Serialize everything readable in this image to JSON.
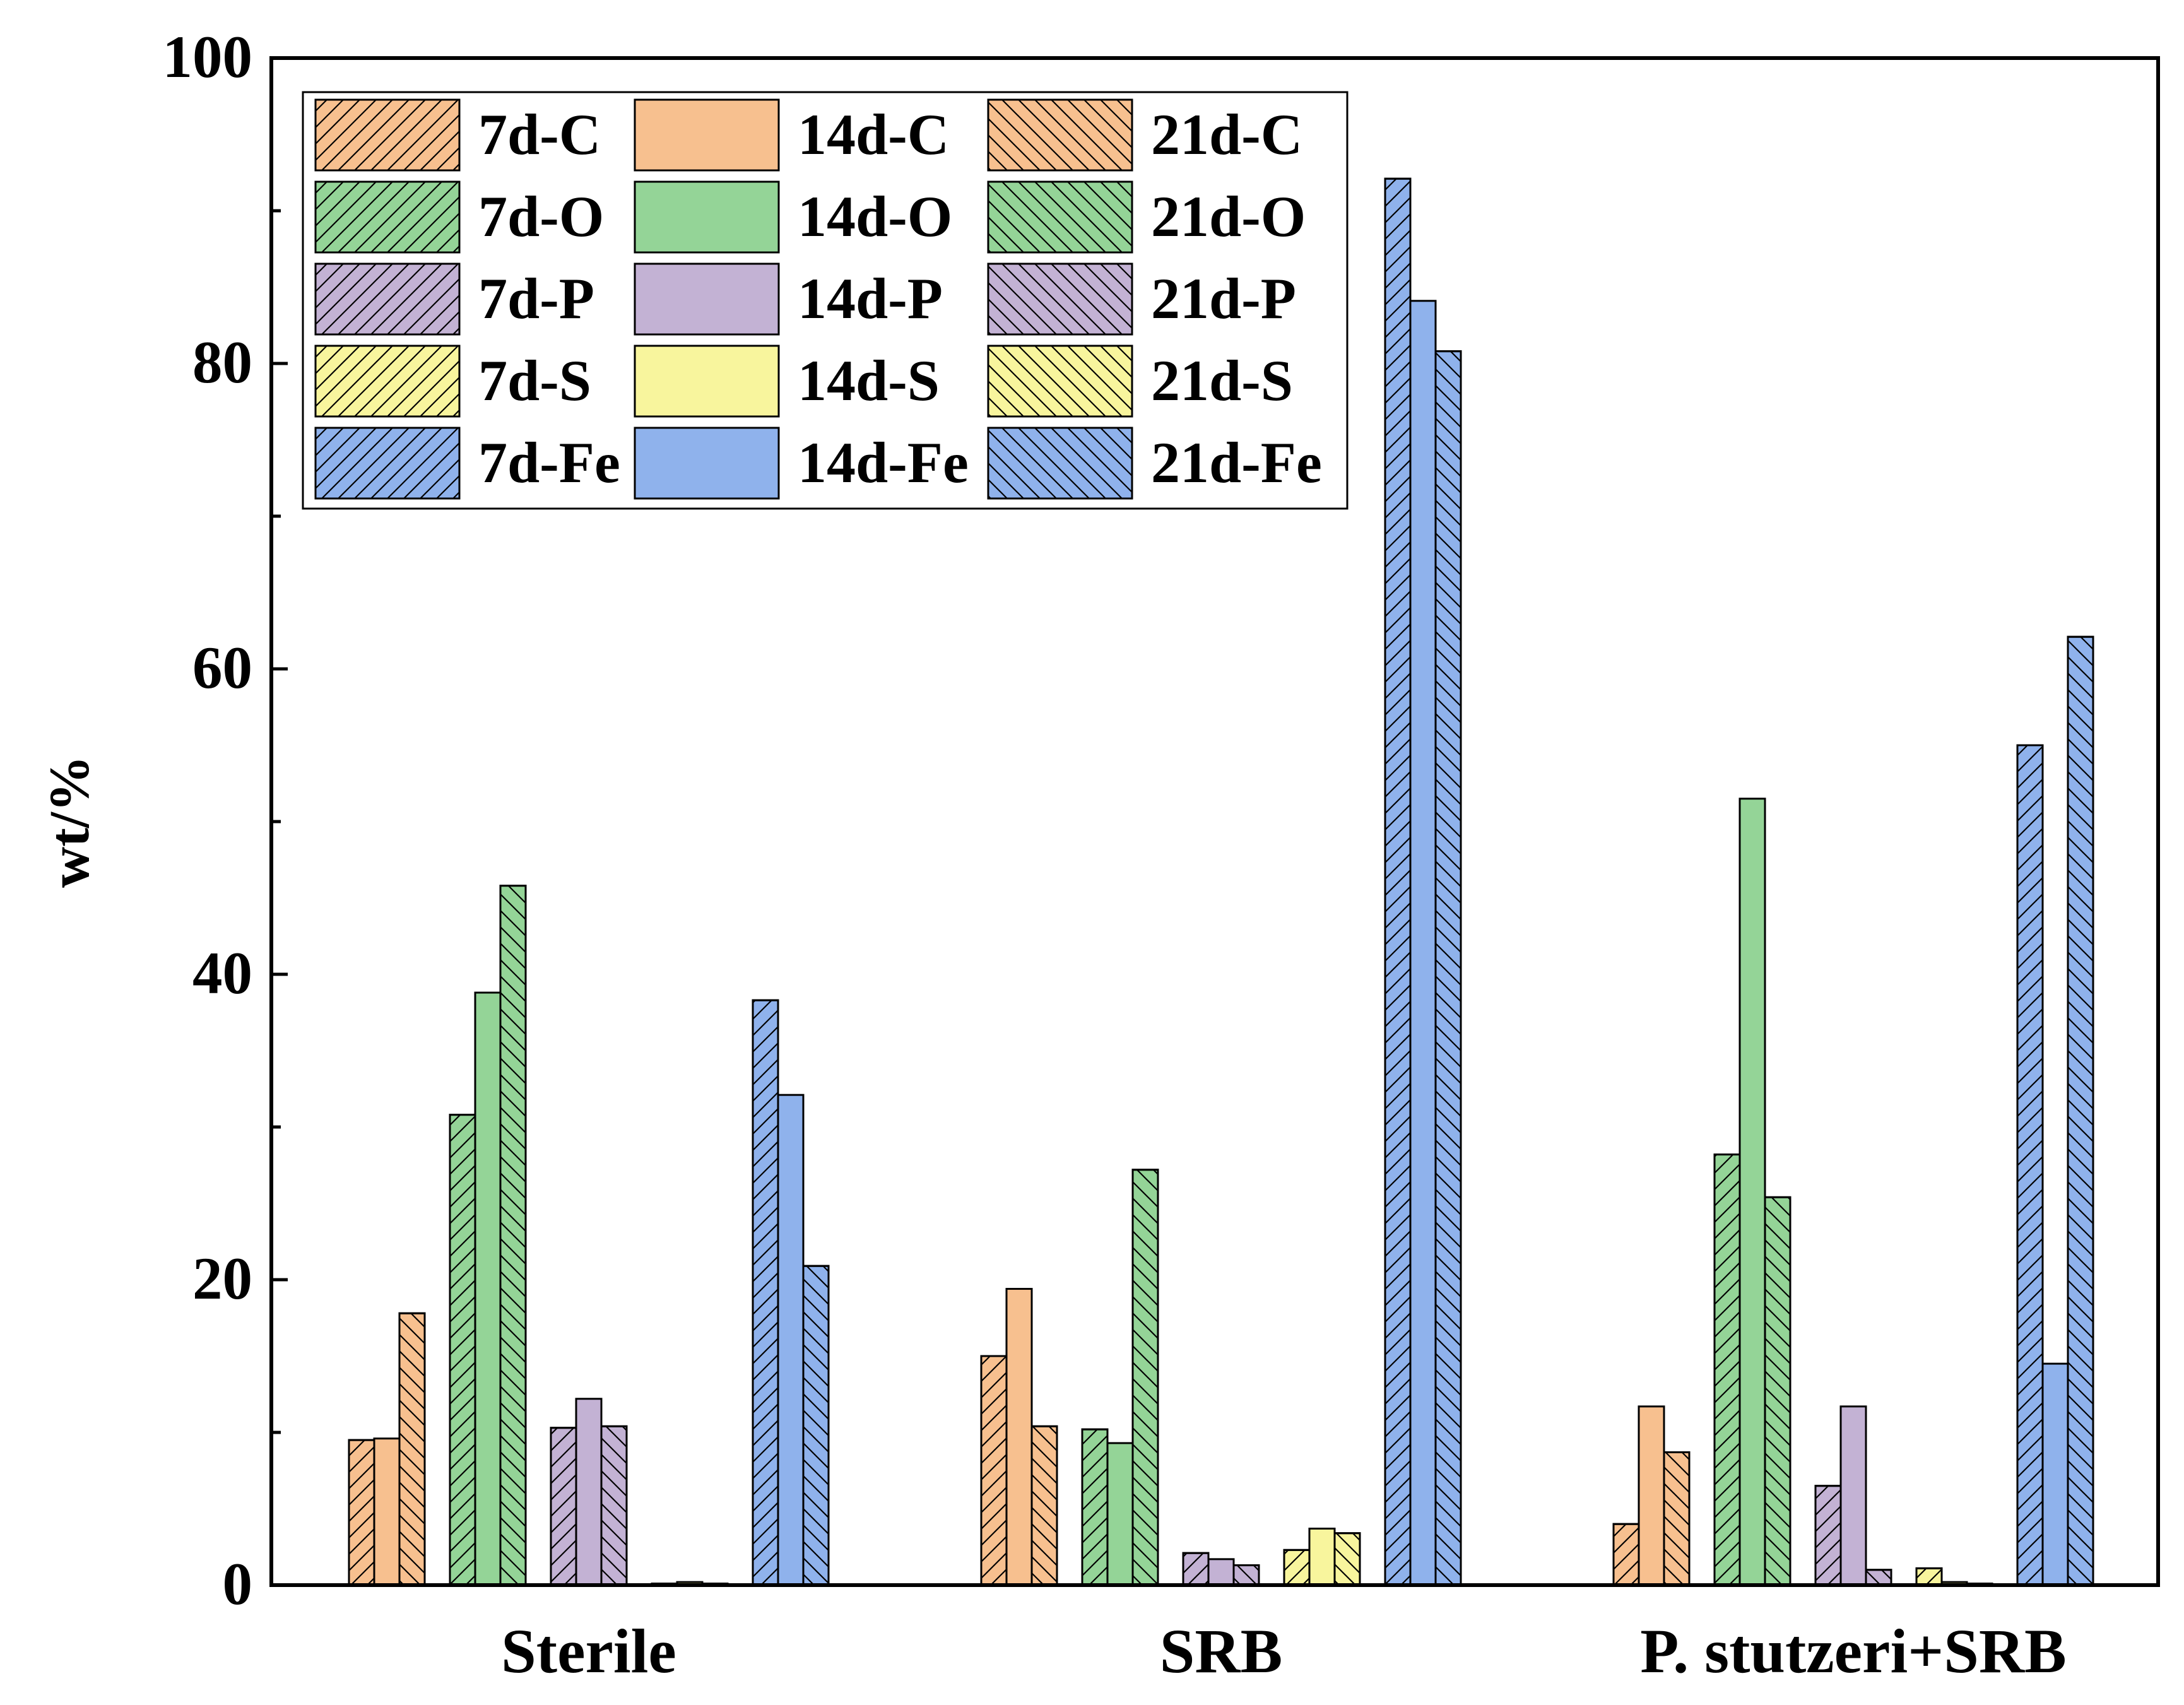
{
  "chart_data": {
    "type": "bar",
    "title": "",
    "xlabel": "",
    "ylabel": "wt/%",
    "ylim": [
      0,
      100
    ],
    "yticks": [
      0,
      20,
      40,
      60,
      80,
      100
    ],
    "grid": false,
    "legend_position": "top-left",
    "categories": [
      "Sterile",
      "SRB",
      "P. stutzeri+SRB"
    ],
    "element_colors": {
      "C": "#f7c08f",
      "O": "#94d497",
      "P": "#c3b2d4",
      "S": "#f8f59d",
      "Fe": "#8fb2ec"
    },
    "hatch_by_day": {
      "7d": "forward",
      "14d": "solid",
      "21d": "backward"
    },
    "series": [
      {
        "name": "7d-C",
        "element": "C",
        "day": "7d",
        "values": [
          9.5,
          15.0,
          4.0
        ]
      },
      {
        "name": "14d-C",
        "element": "C",
        "day": "14d",
        "values": [
          9.6,
          19.4,
          11.7
        ]
      },
      {
        "name": "21d-C",
        "element": "C",
        "day": "21d",
        "values": [
          17.8,
          10.4,
          8.7
        ]
      },
      {
        "name": "7d-O",
        "element": "O",
        "day": "7d",
        "values": [
          30.8,
          10.2,
          28.2
        ]
      },
      {
        "name": "14d-O",
        "element": "O",
        "day": "14d",
        "values": [
          38.8,
          9.3,
          51.5
        ]
      },
      {
        "name": "21d-O",
        "element": "O",
        "day": "21d",
        "values": [
          45.8,
          27.2,
          25.4
        ]
      },
      {
        "name": "7d-P",
        "element": "P",
        "day": "7d",
        "values": [
          10.3,
          2.1,
          6.5
        ]
      },
      {
        "name": "14d-P",
        "element": "P",
        "day": "14d",
        "values": [
          12.2,
          1.7,
          11.7
        ]
      },
      {
        "name": "21d-P",
        "element": "P",
        "day": "21d",
        "values": [
          10.4,
          1.3,
          1.0
        ]
      },
      {
        "name": "7d-S",
        "element": "S",
        "day": "7d",
        "values": [
          0.1,
          2.3,
          1.1
        ]
      },
      {
        "name": "14d-S",
        "element": "S",
        "day": "14d",
        "values": [
          0.2,
          3.7,
          0.2
        ]
      },
      {
        "name": "21d-S",
        "element": "S",
        "day": "21d",
        "values": [
          0.1,
          3.4,
          0.1
        ]
      },
      {
        "name": "7d-Fe",
        "element": "Fe",
        "day": "7d",
        "values": [
          38.3,
          92.1,
          55.0
        ]
      },
      {
        "name": "14d-Fe",
        "element": "Fe",
        "day": "14d",
        "values": [
          32.1,
          84.1,
          14.5
        ]
      },
      {
        "name": "21d-Fe",
        "element": "Fe",
        "day": "21d",
        "values": [
          20.9,
          80.8,
          62.1
        ]
      }
    ],
    "legend_order": [
      "7d-C",
      "14d-C",
      "21d-C",
      "7d-O",
      "14d-O",
      "21d-O",
      "7d-P",
      "14d-P",
      "21d-P",
      "7d-S",
      "14d-S",
      "21d-S",
      "7d-Fe",
      "14d-Fe",
      "21d-Fe"
    ]
  }
}
